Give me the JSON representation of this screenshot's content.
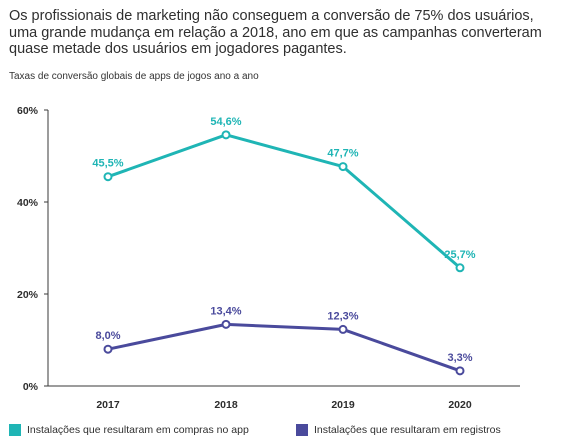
{
  "headline": {
    "line1": "Os profissionais de marketing não conseguem a conversão de 75% dos usuários,",
    "line2": "uma grande mudança em relação a 2018, ano em que as campanhas converteram",
    "line3": "quase metade dos usuários em jogadores pagantes."
  },
  "chart_data": {
    "type": "line",
    "title": "Taxas de conversão globais de apps de jogos ano a ano",
    "categories": [
      "2017",
      "2018",
      "2019",
      "2020"
    ],
    "ylim": [
      0,
      60
    ],
    "yticks": [
      0,
      20,
      40,
      60
    ],
    "ytick_labels": [
      "0%",
      "20%",
      "40%",
      "60%"
    ],
    "grid": false,
    "legend_position": "bottom",
    "series": [
      {
        "name": "Instalações que resultaram em compras no app",
        "values": [
          45.5,
          54.6,
          47.7,
          25.7
        ],
        "labels": [
          "45,5%",
          "54,6%",
          "47,7%",
          "25,7%"
        ],
        "color": "#1fb5b5"
      },
      {
        "name": "Instalações que resultaram em registros",
        "values": [
          8.0,
          13.4,
          12.3,
          3.3
        ],
        "labels": [
          "8,0%",
          "13,4%",
          "12,3%",
          "3,3%"
        ],
        "color": "#4a4a9c"
      }
    ],
    "axis_color": "#3a3a3a"
  }
}
